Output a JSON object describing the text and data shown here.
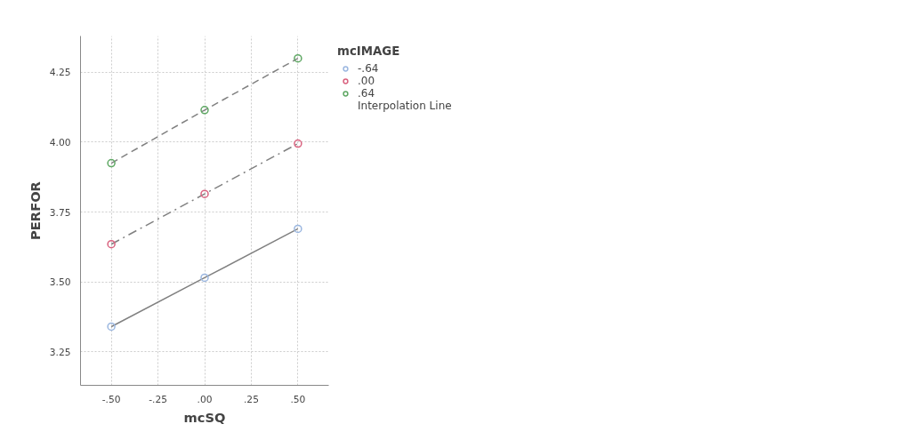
{
  "chart_data": {
    "type": "line",
    "xlabel": "mcSQ",
    "ylabel": "PERFOR",
    "legend_title": "mcIMAGE",
    "x": [
      -0.5,
      0,
      0.5
    ],
    "series": [
      {
        "name": "-.64",
        "color": "#9bb7e0",
        "values": [
          3.34,
          3.515,
          3.69
        ],
        "line_style": "solid"
      },
      {
        "name": ".00",
        "color": "#d9627f",
        "values": [
          3.635,
          3.815,
          3.995
        ],
        "line_style": "dashdot"
      },
      {
        "name": ".64",
        "color": "#5fa864",
        "values": [
          3.925,
          4.115,
          4.3
        ],
        "line_style": "dashed"
      }
    ],
    "annotations": [
      "Interpolation Line"
    ],
    "xlim": [
      -0.665,
      0.665
    ],
    "xticks": [
      {
        "value": -0.5,
        "label": "-.50"
      },
      {
        "value": -0.25,
        "label": "-.25"
      },
      {
        "value": 0,
        "label": ".00"
      },
      {
        "value": 0.25,
        "label": ".25"
      },
      {
        "value": 0.5,
        "label": ".50"
      }
    ],
    "ylim": [
      3.13,
      4.38
    ],
    "yticks": [
      {
        "value": 3.25,
        "label": "3.25"
      },
      {
        "value": 3.5,
        "label": "3.50"
      },
      {
        "value": 3.75,
        "label": "3.75"
      },
      {
        "value": 4.0,
        "label": "4.00"
      },
      {
        "value": 4.25,
        "label": "4.25"
      }
    ],
    "grid": true,
    "legend": "right",
    "marker": "circle"
  }
}
